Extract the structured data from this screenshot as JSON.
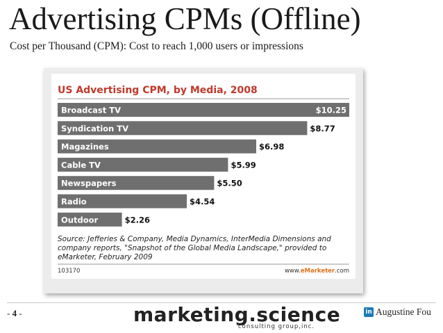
{
  "slide": {
    "title": "Advertising CPMs (Offline)",
    "subtitle": "Cost per Thousand (CPM): Cost to reach 1,000 users or impressions",
    "page_prefix": "- ",
    "page_number": "4",
    "page_suffix": " -",
    "logo_main": "marketing.science",
    "logo_sub": "consulting group,inc.",
    "author": "Augustine Fou",
    "linkedin_icon_text": "in"
  },
  "colors": {
    "bar": "#6f6f6f",
    "title_red": "#c0392b",
    "frame_bg": "#ececec",
    "plot_bg": "#ffffff",
    "linkedin_blue": "#1d7ab8",
    "emarketer_orange": "#e0711b"
  },
  "chart_data": {
    "type": "bar",
    "orientation": "horizontal",
    "title": "US Advertising CPM, by Media, 2008",
    "categories": [
      "Broadcast TV",
      "Syndication TV",
      "Magazines",
      "Cable TV",
      "Newspapers",
      "Radio",
      "Outdoor"
    ],
    "values": [
      10.25,
      8.77,
      6.98,
      5.99,
      5.5,
      4.54,
      2.26
    ],
    "value_labels": [
      "$10.25",
      "$8.77",
      "$6.98",
      "$5.99",
      "$5.50",
      "$4.54",
      "$2.26"
    ],
    "source_lines": [
      "Source: Jefferies & Company, Media Dynamics, InterMedia Dimensions and",
      "company reports, \"Snapshot of the Global Media Landscape,\" provided to",
      "eMarketer, February 2009"
    ],
    "chart_id": "103170",
    "credit_prefix": "www.",
    "credit_brand": "eMarketer",
    "credit_suffix": ".com"
  }
}
